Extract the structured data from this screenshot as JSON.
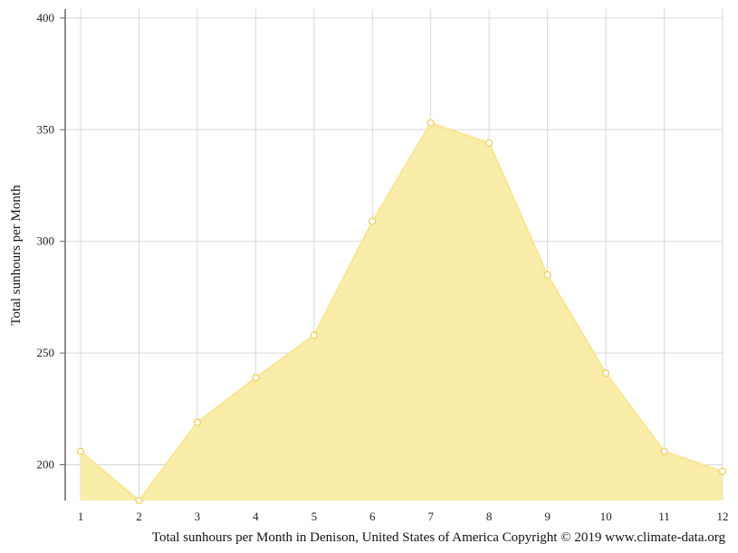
{
  "chart_data": {
    "type": "area",
    "x": [
      1,
      2,
      3,
      4,
      5,
      6,
      7,
      8,
      9,
      10,
      11,
      12
    ],
    "values": [
      206,
      184,
      219,
      239,
      258,
      309,
      353,
      344,
      285,
      241,
      206,
      197
    ],
    "ylabel": "Total sunhours per Month",
    "caption": "Total sunhours per Month in Denison, United States of America Copyright © 2019 www.climate-data.org",
    "ylim": [
      184,
      404
    ],
    "yticks": [
      200,
      250,
      300,
      350,
      400
    ],
    "grid": true,
    "colors": {
      "fill": "#f9eca4",
      "line": "#f9e594",
      "marker_stroke": "#f0d060",
      "grid": "#d9d9d9",
      "axis": "#666666"
    }
  }
}
